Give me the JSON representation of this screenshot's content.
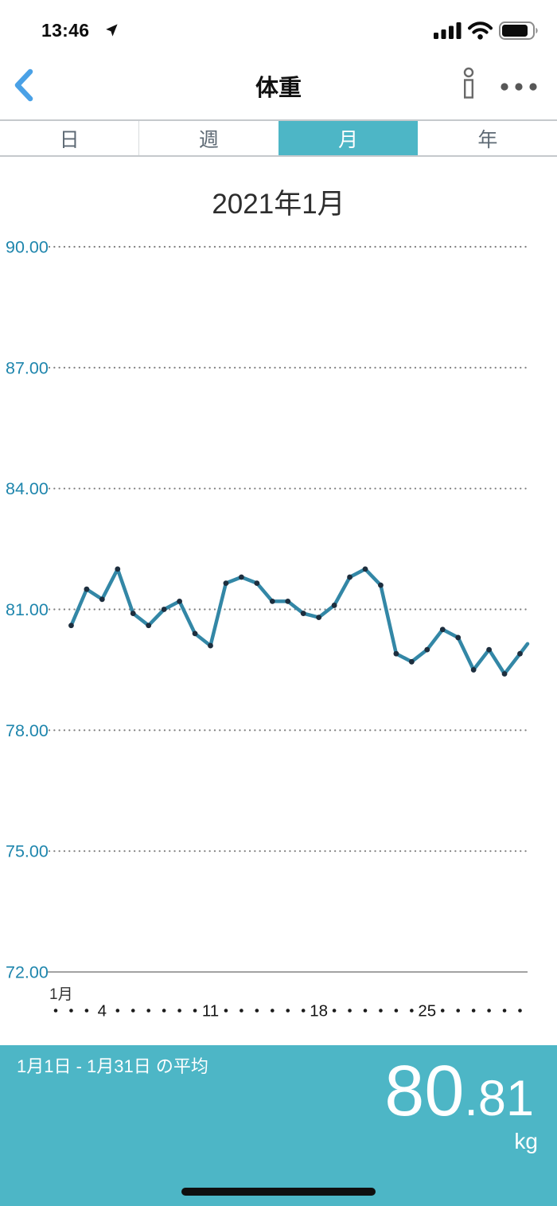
{
  "status_bar": {
    "time": "13:46",
    "icons": [
      "location-arrow",
      "cellular-signal-full",
      "wifi-full",
      "battery"
    ]
  },
  "nav": {
    "title": "体重",
    "back_icon": "chevron-left",
    "info_icon": "info",
    "more_icon": "ellipsis"
  },
  "tabs": [
    {
      "label": "日",
      "selected": false
    },
    {
      "label": "週",
      "selected": false
    },
    {
      "label": "月",
      "selected": true
    },
    {
      "label": "年",
      "selected": false
    }
  ],
  "chart_data": {
    "type": "line",
    "title": "2021年1月",
    "unit": "kg",
    "x": [
      2,
      3,
      4,
      5,
      6,
      7,
      8,
      9,
      10,
      11,
      12,
      13,
      14,
      15,
      16,
      17,
      18,
      19,
      20,
      21,
      22,
      23,
      24,
      25,
      26,
      27,
      28,
      29,
      30,
      31
    ],
    "values": [
      80.6,
      81.5,
      81.25,
      82.0,
      80.9,
      80.6,
      81.0,
      81.2,
      80.4,
      80.1,
      81.65,
      81.8,
      81.65,
      81.2,
      81.2,
      80.9,
      80.8,
      81.1,
      81.8,
      82.0,
      81.6,
      79.9,
      79.7,
      80.0,
      80.5,
      80.3,
      79.5,
      80.0,
      79.4,
      79.9
    ],
    "ylim": [
      72,
      90
    ],
    "ytick_interval": 3,
    "yticks": [
      "90.00",
      "87.00",
      "84.00",
      "81.00",
      "78.00",
      "75.00",
      "72.00"
    ],
    "grid": "dotted-horizontal",
    "legend": "none",
    "x_month_label": "1月",
    "x_days_total": 31,
    "x_labeled_days": [
      4,
      11,
      18,
      25
    ],
    "line_color": "#3387a6",
    "dot_color": "#1d2e3e",
    "axis_label_color": "#1f86ad"
  },
  "summary": {
    "range_label": "1月1日 - 1月31日 の平均",
    "value_int": "80",
    "value_dec": ".81",
    "value": 80.81,
    "unit": "kg",
    "bg_color": "#4db6c6"
  },
  "theme": {
    "accent_teal": "#4db6c6",
    "back_arrow_blue": "#4aa1e6",
    "tab_text_gray": "#5d6974"
  }
}
